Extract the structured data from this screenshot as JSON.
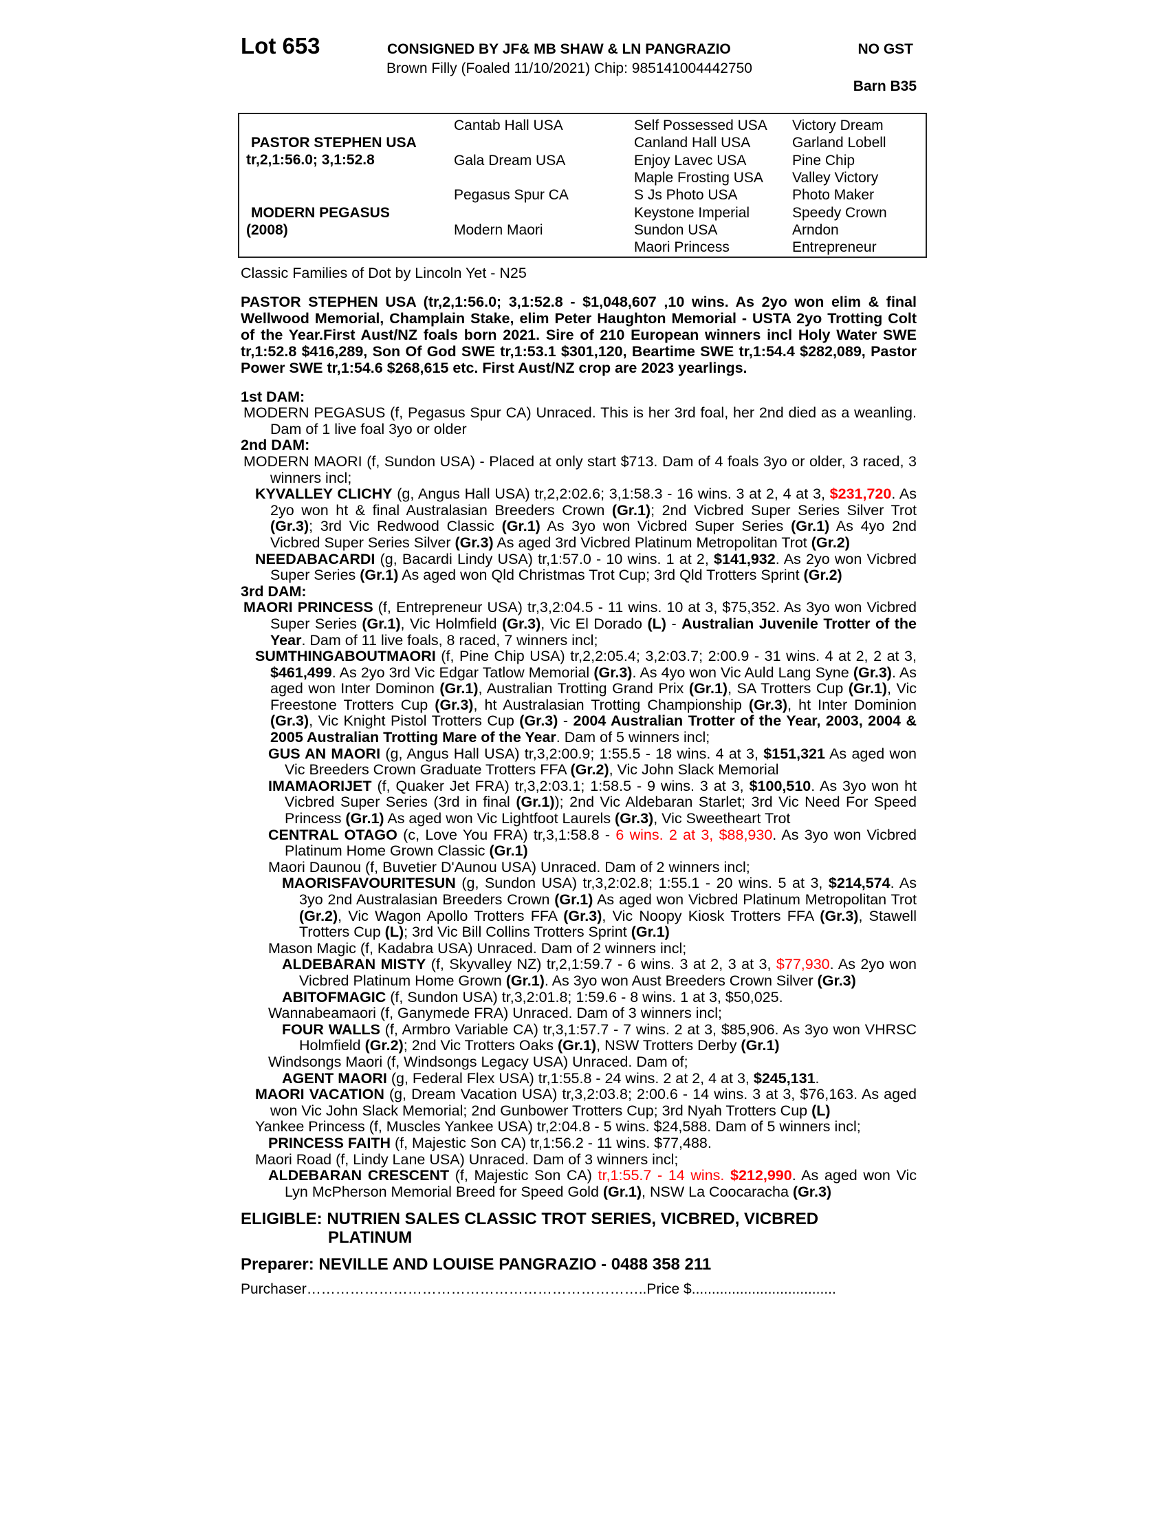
{
  "header": {
    "lot": "Lot 653",
    "consigned": "CONSIGNED BY JF& MB SHAW & LN PANGRAZIO",
    "gst": "NO GST",
    "description": "Brown Filly (Foaled 11/10/2021) Chip: 985141004442750",
    "barn": "Barn B35"
  },
  "pedigree": {
    "sire": {
      "name": "PASTOR STEPHEN USA",
      "record": "tr,2,1:56.0; 3,1:52.8"
    },
    "dam": {
      "name": "MODERN PEGASUS",
      "year": "(2008)"
    },
    "gen2": [
      "Cantab Hall USA",
      "Gala Dream USA",
      "Pegasus Spur CA",
      "Modern Maori"
    ],
    "gen3": [
      "Self Possessed USA",
      "Canland Hall USA",
      "Enjoy Lavec USA",
      "Maple Frosting USA",
      "S Js Photo USA",
      "Keystone Imperial",
      "Sundon USA",
      "Maori Princess"
    ],
    "gen4": [
      "Victory Dream",
      "Garland Lobell",
      "Pine Chip",
      "Valley Victory",
      "Photo Maker",
      "Speedy Crown",
      "Arndon",
      "Entrepreneur"
    ]
  },
  "family": "Classic Families of Dot by Lincoln Yet - N25",
  "sire_text": "PASTOR STEPHEN USA (tr,2,1:56.0; 3,1:52.8 - $1,048,607 ,10 wins. As 2yo won elim & final Wellwood Memorial, Champlain Stake, elim Peter Haughton Memorial - USTA 2yo Trotting Colt of the Year.First Aust/NZ foals born 2021. Sire of 210 European winners incl Holy Water SWE tr,1:52.8 $416,289, Son Of God SWE tr,1:53.1 $301,120, Beartime SWE tr,1:54.4 $282,089, Pastor Power SWE tr,1:54.6 $268,615 etc. First Aust/NZ crop are 2023 yearlings.",
  "colors": {
    "highlight": "#ff0000"
  },
  "entries": [
    {
      "level": 0,
      "segments": [
        {
          "t": "1st DAM:",
          "s": "b"
        }
      ]
    },
    {
      "level": 1,
      "segments": [
        {
          "t": "MODERN PEGASUS (f, Pegasus Spur CA) Unraced. This is her 3rd foal, her 2nd died as a weanling. Dam of 1 live foal 3yo or older",
          "s": ""
        }
      ]
    },
    {
      "level": 0,
      "segments": [
        {
          "t": "2nd DAM:",
          "s": "b"
        }
      ]
    },
    {
      "level": 1,
      "segments": [
        {
          "t": "MODERN MAORI (f, Sundon USA) - Placed at only start $713. Dam of 4 foals 3yo or older, 3 raced, 3 winners incl;",
          "s": ""
        }
      ]
    },
    {
      "level": 2,
      "segments": [
        {
          "t": "KYVALLEY CLICHY",
          "s": "b"
        },
        {
          "t": " (g, Angus Hall USA) tr,2,2:02.6; 3,1:58.3 - 16 wins. 3 at 2, 4 at 3, ",
          "s": ""
        },
        {
          "t": "$231,720",
          "s": "rb"
        },
        {
          "t": ". As 2yo won ht & final Australasian Breeders Crown ",
          "s": ""
        },
        {
          "t": "(Gr.1)",
          "s": "b"
        },
        {
          "t": "; 2nd Vicbred Super Series Silver Trot ",
          "s": ""
        },
        {
          "t": "(Gr.3)",
          "s": "b"
        },
        {
          "t": "; 3rd Vic Redwood Classic ",
          "s": ""
        },
        {
          "t": "(Gr.1)",
          "s": "b"
        },
        {
          "t": " As 3yo won Vicbred Super Series ",
          "s": ""
        },
        {
          "t": "(Gr.1)",
          "s": "b"
        },
        {
          "t": " As 4yo 2nd Vicbred Super Series Silver ",
          "s": ""
        },
        {
          "t": "(Gr.3)",
          "s": "b"
        },
        {
          "t": " As aged 3rd Vicbred Platinum Metropolitan Trot ",
          "s": ""
        },
        {
          "t": "(Gr.2)",
          "s": "b"
        }
      ]
    },
    {
      "level": 2,
      "segments": [
        {
          "t": "NEEDABACARDI",
          "s": "b"
        },
        {
          "t": " (g, Bacardi Lindy USA) tr,1:57.0 - 10 wins. 1 at 2, ",
          "s": ""
        },
        {
          "t": "$141,932",
          "s": "b"
        },
        {
          "t": ". As 2yo won Vicbred Super Series ",
          "s": ""
        },
        {
          "t": "(Gr.1)",
          "s": "b"
        },
        {
          "t": " As aged won Qld Christmas Trot Cup; 3rd Qld Trotters Sprint ",
          "s": ""
        },
        {
          "t": "(Gr.2)",
          "s": "b"
        }
      ]
    },
    {
      "level": 0,
      "segments": [
        {
          "t": "3rd DAM:",
          "s": "b"
        }
      ]
    },
    {
      "level": 1,
      "segments": [
        {
          "t": "MAORI PRINCESS",
          "s": "b"
        },
        {
          "t": " (f, Entrepreneur USA) tr,3,2:04.5 - 11 wins. 10 at 3, $75,352. As 3yo won Vicbred Super Series ",
          "s": ""
        },
        {
          "t": "(Gr.1)",
          "s": "b"
        },
        {
          "t": ", Vic Holmfield ",
          "s": ""
        },
        {
          "t": "(Gr.3)",
          "s": "b"
        },
        {
          "t": ", Vic El Dorado ",
          "s": ""
        },
        {
          "t": "(L)",
          "s": "b"
        },
        {
          "t": " - ",
          "s": ""
        },
        {
          "t": "Australian Juvenile Trotter of the Year",
          "s": "b"
        },
        {
          "t": ". Dam of 11 live foals, 8 raced, 7 winners incl;",
          "s": ""
        }
      ]
    },
    {
      "level": 2,
      "segments": [
        {
          "t": "SUMTHINGABOUTMAORI",
          "s": "b"
        },
        {
          "t": " (f, Pine Chip USA) tr,2,2:05.4; 3,2:03.7; 2:00.9 - 31 wins. 4 at 2, 2 at 3, ",
          "s": ""
        },
        {
          "t": "$461,499",
          "s": "b"
        },
        {
          "t": ". As 2yo 3rd Vic Edgar Tatlow Memorial ",
          "s": ""
        },
        {
          "t": "(Gr.3)",
          "s": "b"
        },
        {
          "t": ". As 4yo won Vic Auld Lang Syne ",
          "s": ""
        },
        {
          "t": "(Gr.3)",
          "s": "b"
        },
        {
          "t": ". As aged won Inter Dominon ",
          "s": ""
        },
        {
          "t": "(Gr.1)",
          "s": "b"
        },
        {
          "t": ", Australian Trotting Grand Prix ",
          "s": ""
        },
        {
          "t": "(Gr.1)",
          "s": "b"
        },
        {
          "t": ", SA Trotters Cup ",
          "s": ""
        },
        {
          "t": "(Gr.1)",
          "s": "b"
        },
        {
          "t": ", Vic Freestone Trotters Cup ",
          "s": ""
        },
        {
          "t": "(Gr.3)",
          "s": "b"
        },
        {
          "t": ", ht Australasian Trotting Championship ",
          "s": ""
        },
        {
          "t": "(Gr.3)",
          "s": "b"
        },
        {
          "t": ", ht Inter Dominion ",
          "s": ""
        },
        {
          "t": "(Gr.3)",
          "s": "b"
        },
        {
          "t": ", Vic Knight Pistol Trotters Cup ",
          "s": ""
        },
        {
          "t": "(Gr.3)",
          "s": "b"
        },
        {
          "t": " - ",
          "s": ""
        },
        {
          "t": "2004 Australian Trotter of the Year, 2003, 2004 & 2005 Australian Trotting Mare of the Year",
          "s": "b"
        },
        {
          "t": ". Dam of 5 winners incl;",
          "s": ""
        }
      ]
    },
    {
      "level": 3,
      "segments": [
        {
          "t": "GUS AN MAORI",
          "s": "b"
        },
        {
          "t": " (g, Angus Hall USA) tr,3,2:00.9; 1:55.5 - 18 wins. 4 at 3, ",
          "s": ""
        },
        {
          "t": "$151,321",
          "s": "b"
        },
        {
          "t": " As aged won Vic Breeders Crown Graduate Trotters FFA ",
          "s": ""
        },
        {
          "t": "(Gr.2)",
          "s": "b"
        },
        {
          "t": ", Vic John Slack Memorial",
          "s": ""
        }
      ]
    },
    {
      "level": 3,
      "segments": [
        {
          "t": "IMAMAORIJET",
          "s": "b"
        },
        {
          "t": " (f, Quaker Jet FRA) tr,3,2:03.1; 1:58.5 - 9 wins. 3 at 3, ",
          "s": ""
        },
        {
          "t": "$100,510",
          "s": "b"
        },
        {
          "t": ". As 3yo won ht Vicbred Super Series (3rd in final ",
          "s": ""
        },
        {
          "t": "(Gr.1)",
          "s": "b"
        },
        {
          "t": "); 2nd Vic Aldebaran Starlet; 3rd Vic Need For Speed Princess ",
          "s": ""
        },
        {
          "t": "(Gr.1)",
          "s": "b"
        },
        {
          "t": " As aged won Vic Lightfoot Laurels ",
          "s": ""
        },
        {
          "t": "(Gr.3)",
          "s": "b"
        },
        {
          "t": ", Vic Sweetheart Trot",
          "s": ""
        }
      ]
    },
    {
      "level": 3,
      "segments": [
        {
          "t": "CENTRAL OTAGO",
          "s": "b"
        },
        {
          "t": " (c, Love You FRA) tr,3,1:58.8 - ",
          "s": ""
        },
        {
          "t": "6 wins. 2 at 3, $88,930",
          "s": "r"
        },
        {
          "t": ". As 3yo won Vicbred Platinum Home Grown Classic ",
          "s": ""
        },
        {
          "t": "(Gr.1)",
          "s": "b"
        }
      ]
    },
    {
      "level": 3,
      "segments": [
        {
          "t": "Maori Daunou (f, Buvetier D'Aunou USA) Unraced. Dam of 2 winners incl;",
          "s": ""
        }
      ]
    },
    {
      "level": 4,
      "segments": [
        {
          "t": "MAORISFAVOURITESUN",
          "s": "b"
        },
        {
          "t": " (g, Sundon USA) tr,3,2:02.8; 1:55.1 - 20 wins. 5 at 3, ",
          "s": ""
        },
        {
          "t": "$214,574",
          "s": "b"
        },
        {
          "t": ". As 3yo 2nd Australasian Breeders Crown ",
          "s": ""
        },
        {
          "t": "(Gr.1)",
          "s": "b"
        },
        {
          "t": " As aged won Vicbred Platinum Metropolitan Trot ",
          "s": ""
        },
        {
          "t": "(Gr.2)",
          "s": "b"
        },
        {
          "t": ", Vic Wagon Apollo Trotters FFA ",
          "s": ""
        },
        {
          "t": "(Gr.3)",
          "s": "b"
        },
        {
          "t": ", Vic Noopy Kiosk Trotters FFA ",
          "s": ""
        },
        {
          "t": "(Gr.3)",
          "s": "b"
        },
        {
          "t": ", Stawell Trotters Cup ",
          "s": ""
        },
        {
          "t": "(L)",
          "s": "b"
        },
        {
          "t": "; 3rd Vic Bill Collins Trotters Sprint ",
          "s": ""
        },
        {
          "t": "(Gr.1)",
          "s": "b"
        }
      ]
    },
    {
      "level": 3,
      "segments": [
        {
          "t": "Mason Magic (f, Kadabra USA) Unraced. Dam of 2 winners incl;",
          "s": ""
        }
      ]
    },
    {
      "level": 4,
      "segments": [
        {
          "t": "ALDEBARAN MISTY",
          "s": "b"
        },
        {
          "t": " (f, Skyvalley NZ) tr,2,1:59.7 - 6 wins. 3 at 2, 3 at 3, ",
          "s": ""
        },
        {
          "t": "$77,930",
          "s": "r"
        },
        {
          "t": ". As 2yo won Vicbred Platinum Home Grown ",
          "s": ""
        },
        {
          "t": "(Gr.1)",
          "s": "b"
        },
        {
          "t": ". As 3yo won Aust Breeders Crown Silver ",
          "s": ""
        },
        {
          "t": "(Gr.3)",
          "s": "b"
        }
      ]
    },
    {
      "level": 4,
      "segments": [
        {
          "t": "ABITOFMAGIC",
          "s": "b"
        },
        {
          "t": " (f, Sundon USA) tr,3,2:01.8; 1:59.6 - 8 wins. 1 at 3, $50,025.",
          "s": ""
        }
      ]
    },
    {
      "level": 3,
      "segments": [
        {
          "t": "Wannabeamaori (f, Ganymede FRA) Unraced. Dam of 3 winners incl;",
          "s": ""
        }
      ]
    },
    {
      "level": 4,
      "segments": [
        {
          "t": "FOUR WALLS",
          "s": "b"
        },
        {
          "t": " (f, Armbro Variable CA) tr,3,1:57.7 - 7 wins. 2 at 3, $85,906. As 3yo won VHRSC Holmfield ",
          "s": ""
        },
        {
          "t": "(Gr.2)",
          "s": "b"
        },
        {
          "t": "; 2nd Vic Trotters Oaks ",
          "s": ""
        },
        {
          "t": "(Gr.1)",
          "s": "b"
        },
        {
          "t": ", NSW Trotters Derby ",
          "s": ""
        },
        {
          "t": "(Gr.1)",
          "s": "b"
        }
      ]
    },
    {
      "level": 3,
      "segments": [
        {
          "t": "Windsongs Maori (f, Windsongs Legacy USA) Unraced. Dam of;",
          "s": ""
        }
      ]
    },
    {
      "level": 4,
      "segments": [
        {
          "t": "AGENT MAORI",
          "s": "b"
        },
        {
          "t": " (g, Federal Flex USA) tr,1:55.8 - 24 wins. 2 at 2, 4 at 3, ",
          "s": ""
        },
        {
          "t": "$245,131",
          "s": "b"
        },
        {
          "t": ".",
          "s": ""
        }
      ]
    },
    {
      "level": 2,
      "segments": [
        {
          "t": "MAORI VACATION",
          "s": "b"
        },
        {
          "t": " (g, Dream Vacation USA) tr,3,2:03.8; 2:00.6 - 14 wins. 3 at 3, $76,163. As aged won Vic John Slack Memorial; 2nd Gunbower Trotters Cup; 3rd Nyah Trotters Cup ",
          "s": ""
        },
        {
          "t": "(L)",
          "s": "b"
        }
      ]
    },
    {
      "level": 2,
      "segments": [
        {
          "t": "Yankee Princess (f, Muscles Yankee USA) tr,2:04.8 - 5 wins. $24,588. Dam of 5 winners incl;",
          "s": ""
        }
      ]
    },
    {
      "level": 3,
      "segments": [
        {
          "t": "PRINCESS FAITH",
          "s": "b"
        },
        {
          "t": " (f, Majestic Son CA) tr,1:56.2 - 11 wins. $77,488.",
          "s": ""
        }
      ]
    },
    {
      "level": 2,
      "segments": [
        {
          "t": "Maori Road (f, Lindy Lane USA) Unraced. Dam of 3 winners incl;",
          "s": ""
        }
      ]
    },
    {
      "level": 3,
      "segments": [
        {
          "t": "ALDEBARAN CRESCENT",
          "s": "b"
        },
        {
          "t": " (f, Majestic Son CA) ",
          "s": ""
        },
        {
          "t": "tr,1:55.7 - 14 wins. ",
          "s": "r"
        },
        {
          "t": "$212,990",
          "s": "rb"
        },
        {
          "t": ". As aged won Vic Lyn McPherson Memorial Breed for Speed Gold ",
          "s": ""
        },
        {
          "t": "(Gr.1)",
          "s": "b"
        },
        {
          "t": ", NSW La Coocaracha ",
          "s": ""
        },
        {
          "t": "(Gr.3)",
          "s": "b"
        }
      ]
    }
  ],
  "footer": {
    "eligible_line1": "ELIGIBLE: NUTRIEN SALES CLASSIC  TROT SERIES, VICBRED, VICBRED",
    "eligible_line2": "PLATINUM",
    "preparer": "Preparer: NEVILLE AND LOUISE PANGRAZIO - 0488 358 211",
    "purchaser": "Purchaser……………………………………………………………..Price $...................................."
  }
}
